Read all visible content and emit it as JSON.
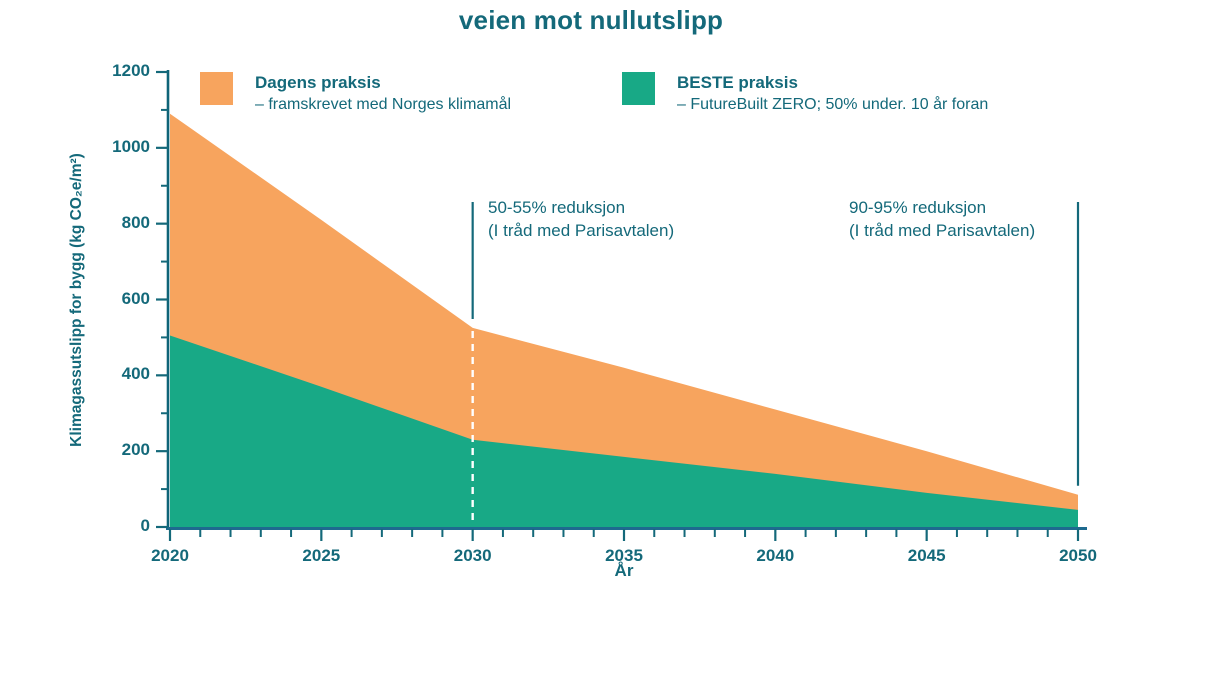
{
  "title": "veien mot nullutslipp",
  "colors": {
    "orange": "#F7A45E",
    "green": "#18A986",
    "teal_text": "#14697A",
    "y_axis_line": "#0F6478",
    "x_axis_line": "#1E6A8F",
    "tick": "#14697A",
    "annotation_line": "#14697A",
    "dashed_guide": "#FFFFFF"
  },
  "legend": [
    {
      "name": "Dagens praksis",
      "desc": "– framskrevet med Norges klimamål",
      "color": "#F7A45E"
    },
    {
      "name": "BESTE praksis",
      "desc": "– FutureBuilt ZERO; 50% under. 10 år foran",
      "color": "#18A986"
    }
  ],
  "annotations": [
    {
      "line1": "50-55% reduksjon",
      "line2": "(I tråd med Parisavtalen)",
      "year": 2030,
      "dashed_guide": true
    },
    {
      "line1": "90-95% reduksjon",
      "line2": "(I tråd med Parisavtalen)",
      "year": 2050,
      "dashed_guide": false
    }
  ],
  "chart_data": {
    "type": "area",
    "title": "veien mot nullutslipp",
    "x": [
      2020,
      2025,
      2030,
      2035,
      2040,
      2045,
      2050
    ],
    "series": [
      {
        "name": "Dagens praksis",
        "color": "#F7A45E",
        "values": [
          1090,
          810,
          525,
          420,
          310,
          200,
          85
        ]
      },
      {
        "name": "BESTE praksis",
        "color": "#18A986",
        "values": [
          505,
          370,
          230,
          185,
          140,
          90,
          45
        ]
      }
    ],
    "xlabel": "År",
    "ylabel": "Klimagassutslipp for bygg  (kg CO₂e/m²)",
    "xlim": [
      2020,
      2050
    ],
    "ylim": [
      0,
      1200
    ],
    "x_ticks": [
      2020,
      2025,
      2030,
      2035,
      2040,
      2045,
      2050
    ],
    "y_ticks": [
      0,
      200,
      400,
      600,
      800,
      1000,
      1200
    ],
    "x_minor_step": 1,
    "y_minor_step": 100,
    "grid": false,
    "legend_position": "top",
    "stacked_look": true
  }
}
